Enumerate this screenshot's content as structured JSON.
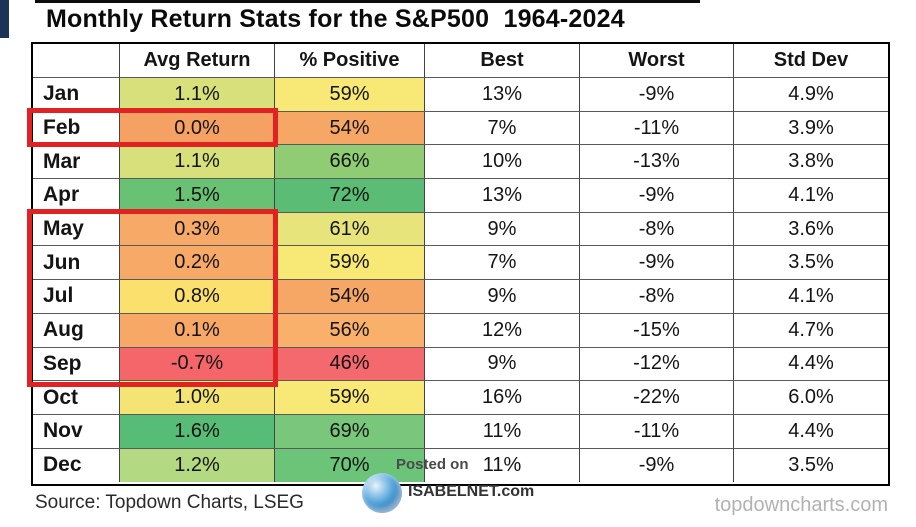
{
  "page": {
    "title": "Monthly Return Stats for the S&P500  1964-2024",
    "source_text": "Source: Topdown Charts, LSEG",
    "site_text": "topdowncharts.com",
    "watermark": {
      "posted_on": "Posted on",
      "site": "ISABELNET.com",
      "logo": "globe-swirl-icon"
    },
    "highlight_color": "#e02222"
  },
  "chart_data": {
    "type": "table",
    "title": "Monthly Return Stats for the S&P500  1964-2024",
    "columns": [
      "",
      "Avg Return",
      "% Positive",
      "Best",
      "Worst",
      "Std Dev"
    ],
    "highlighted_rows": [
      "Feb",
      "May",
      "Jun",
      "Jul",
      "Aug",
      "Sep"
    ],
    "rows": [
      {
        "month": "Jan",
        "avg": "1.1%",
        "pos": "59%",
        "best": "13%",
        "worst": "-9%",
        "std": "4.9%",
        "avg_bg": "#d8e07b",
        "pos_bg": "#f8e876"
      },
      {
        "month": "Feb",
        "avg": "0.0%",
        "pos": "54%",
        "best": "7%",
        "worst": "-11%",
        "std": "3.9%",
        "avg_bg": "#f5a163",
        "pos_bg": "#f6a765"
      },
      {
        "month": "Mar",
        "avg": "1.1%",
        "pos": "66%",
        "best": "10%",
        "worst": "-13%",
        "std": "3.8%",
        "avg_bg": "#d8e07b",
        "pos_bg": "#8fcc74"
      },
      {
        "month": "Apr",
        "avg": "1.5%",
        "pos": "72%",
        "best": "13%",
        "worst": "-9%",
        "std": "4.1%",
        "avg_bg": "#69c173",
        "pos_bg": "#5abc75"
      },
      {
        "month": "May",
        "avg": "0.3%",
        "pos": "61%",
        "best": "9%",
        "worst": "-8%",
        "std": "3.6%",
        "avg_bg": "#f7a967",
        "pos_bg": "#e6e47a"
      },
      {
        "month": "Jun",
        "avg": "0.2%",
        "pos": "59%",
        "best": "7%",
        "worst": "-9%",
        "std": "3.5%",
        "avg_bg": "#f7a967",
        "pos_bg": "#f8e876"
      },
      {
        "month": "Jul",
        "avg": "0.8%",
        "pos": "54%",
        "best": "9%",
        "worst": "-8%",
        "std": "4.1%",
        "avg_bg": "#fbe06e",
        "pos_bg": "#f6a765"
      },
      {
        "month": "Aug",
        "avg": "0.1%",
        "pos": "56%",
        "best": "12%",
        "worst": "-15%",
        "std": "4.7%",
        "avg_bg": "#f7a766",
        "pos_bg": "#f9b06b"
      },
      {
        "month": "Sep",
        "avg": "-0.7%",
        "pos": "46%",
        "best": "9%",
        "worst": "-12%",
        "std": "4.4%",
        "avg_bg": "#f5666b",
        "pos_bg": "#f4696d"
      },
      {
        "month": "Oct",
        "avg": "1.0%",
        "pos": "59%",
        "best": "16%",
        "worst": "-22%",
        "std": "6.0%",
        "avg_bg": "#f3e473",
        "pos_bg": "#f8e876"
      },
      {
        "month": "Nov",
        "avg": "1.6%",
        "pos": "69%",
        "best": "11%",
        "worst": "-11%",
        "std": "4.4%",
        "avg_bg": "#57bc76",
        "pos_bg": "#79c77a"
      },
      {
        "month": "Dec",
        "avg": "1.2%",
        "pos": "70%",
        "best": "11%",
        "worst": "-9%",
        "std": "3.5%",
        "avg_bg": "#b3d983",
        "pos_bg": "#6cc478"
      }
    ]
  }
}
